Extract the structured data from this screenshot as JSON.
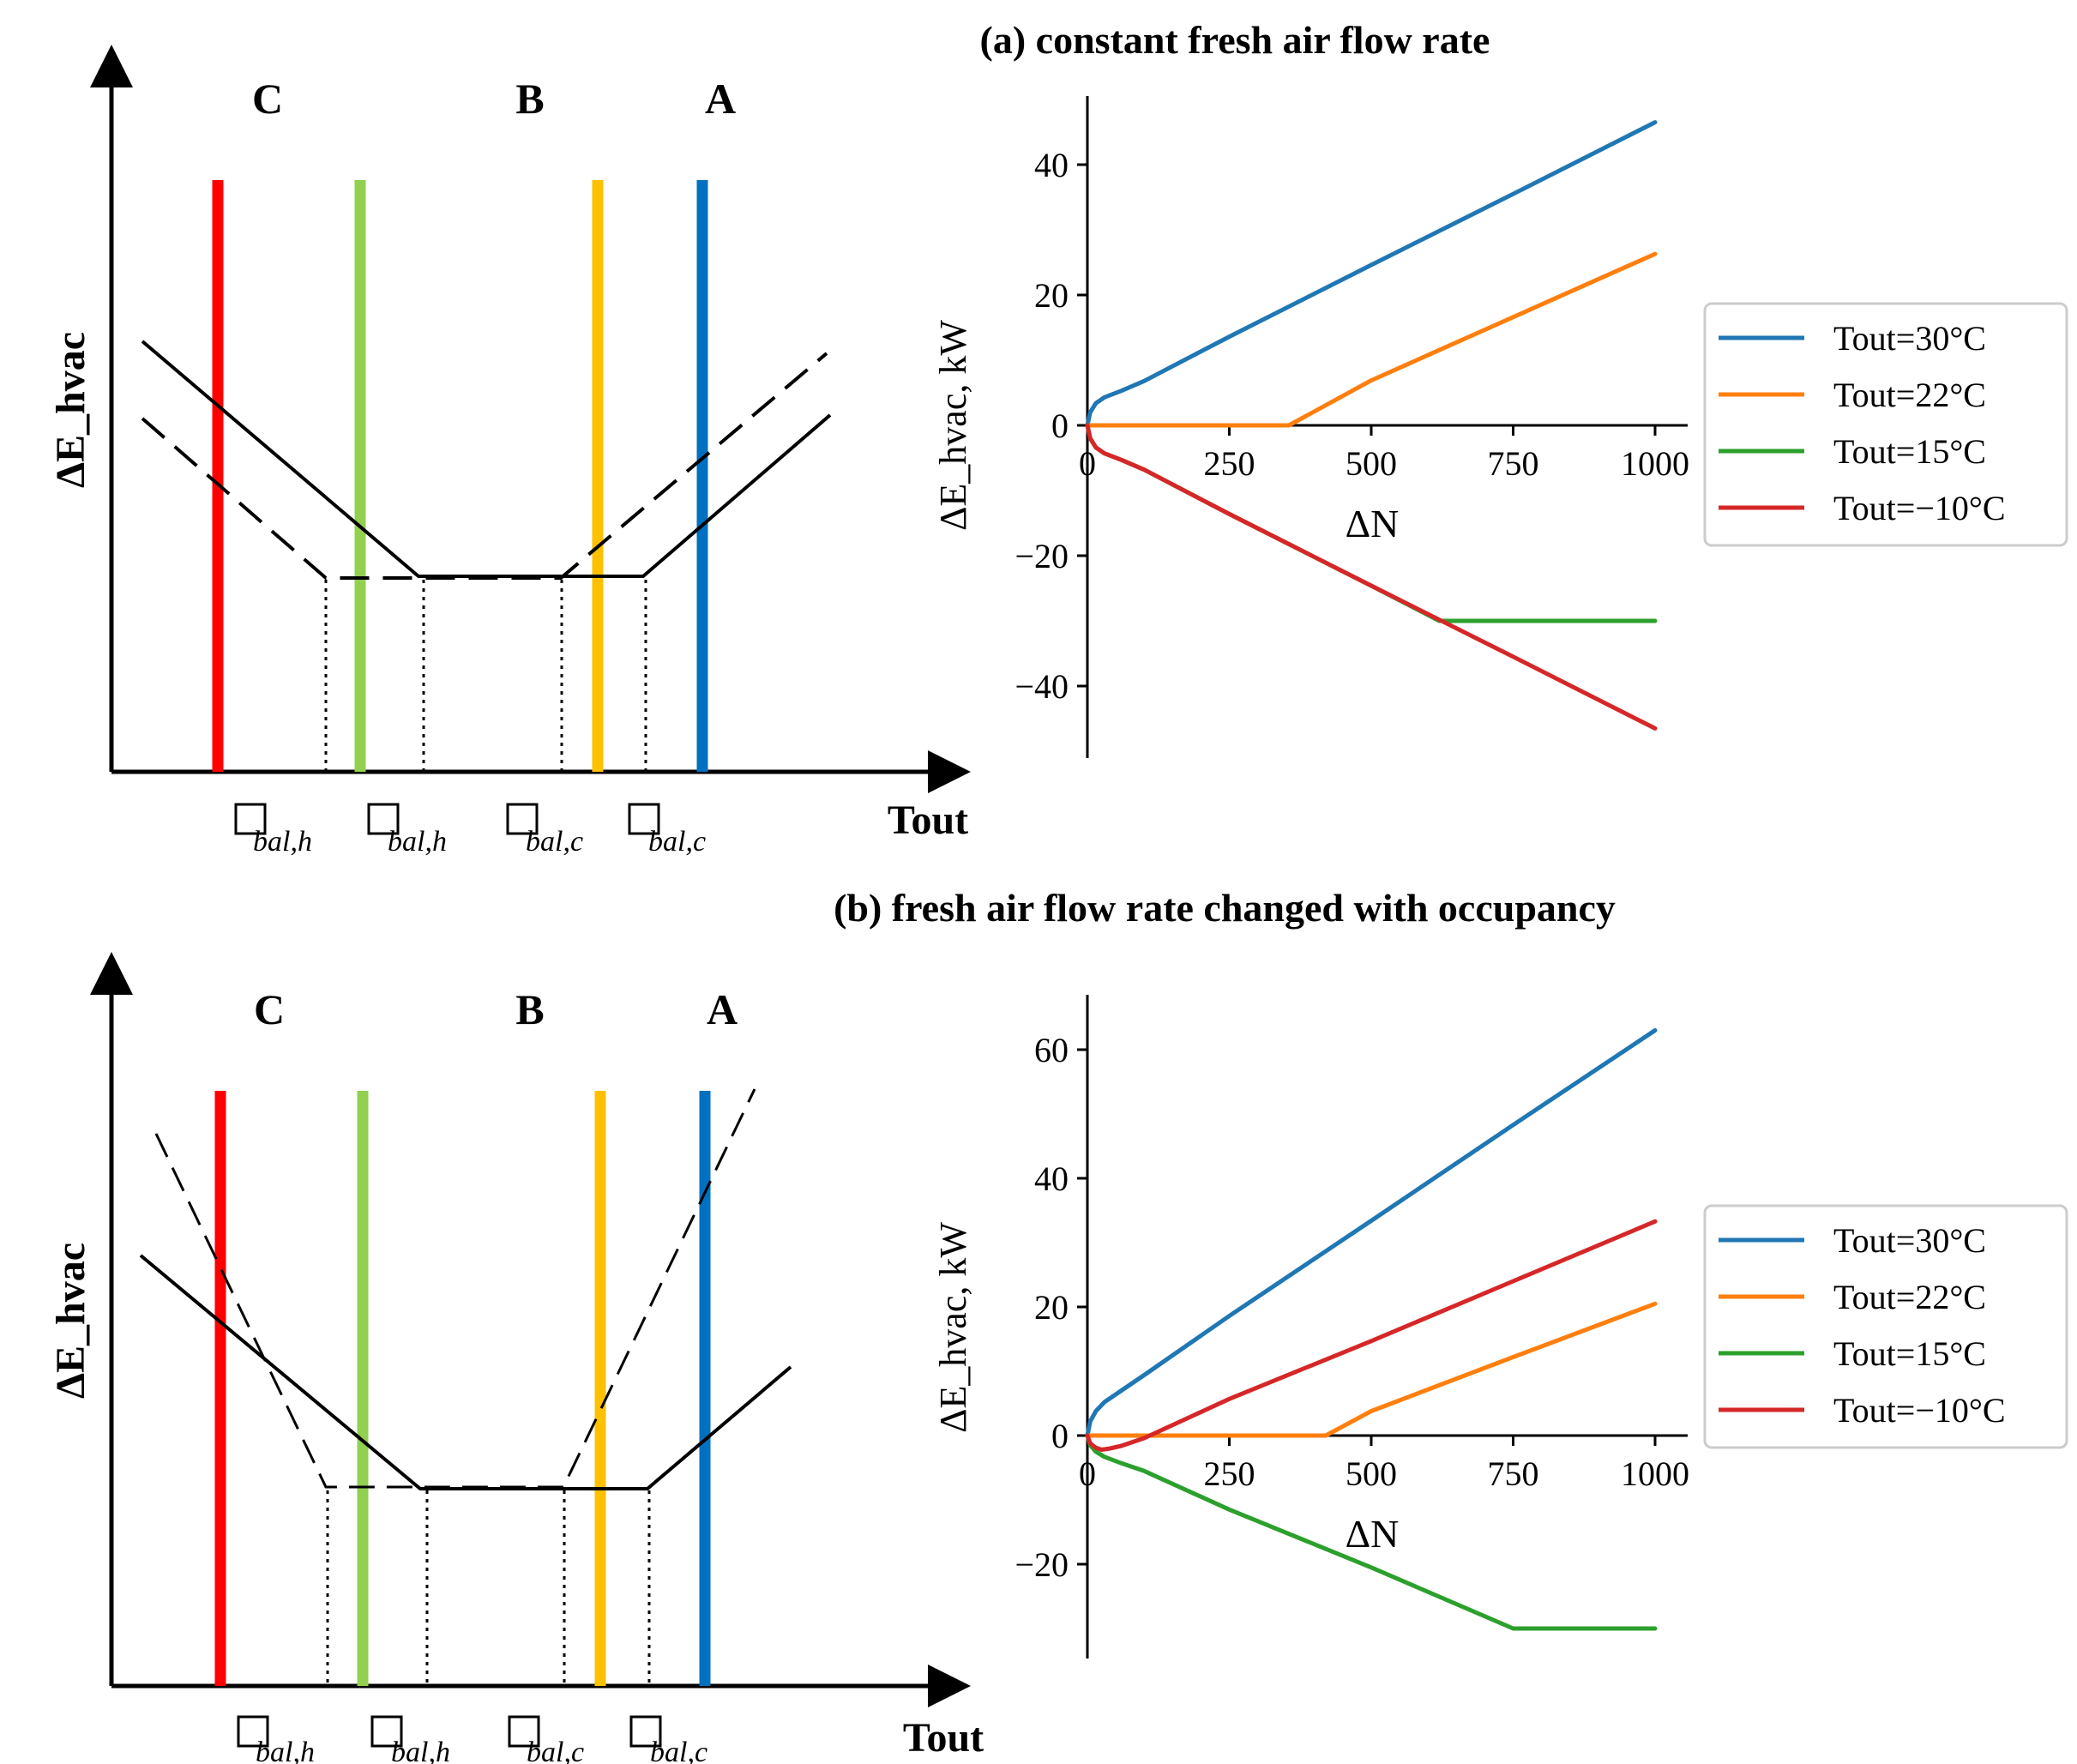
{
  "colors": {
    "blue": "#1f77b4",
    "orange": "#ff7f0e",
    "green": "#2ca02c",
    "red": "#d62728",
    "zone_red": "#ff0000",
    "zone_green": "#92d050",
    "zone_yellow": "#ffc000",
    "zone_blue": "#0070c0"
  },
  "schematics": [
    {
      "id": "a",
      "ylabel": "ΔE_hvac",
      "xlabel": "Tout",
      "regions": [
        "C",
        "B",
        "A"
      ],
      "tick_labels": [
        "□bal,h",
        "□bal,h",
        "□bal,c",
        "□bal,c"
      ],
      "tick_subs": [
        "bal,h",
        "bal,h",
        "bal,c",
        "bal,c"
      ]
    },
    {
      "id": "b",
      "ylabel": "ΔE_hvac",
      "xlabel": "Tout",
      "regions": [
        "C",
        "B",
        "A"
      ],
      "tick_labels": [
        "□bal,h",
        "□bal,h",
        "□bal,c",
        "□bal,c"
      ],
      "tick_subs": [
        "bal,h",
        "bal,h",
        "bal,c",
        "bal,c"
      ]
    }
  ],
  "chart_data": [
    {
      "type": "line",
      "title": "(a) constant fresh air flow rate",
      "xlabel": "ΔN",
      "ylabel": "ΔE_hvac, kW",
      "xlim": [
        0,
        1000
      ],
      "ylim": [
        -50,
        50
      ],
      "xticks": [
        0,
        250,
        500,
        750,
        1000
      ],
      "yticks": [
        -40,
        -20,
        0,
        20,
        40
      ],
      "legend_position": "right",
      "series": [
        {
          "name": "Tout=30°C",
          "color": "#1f77b4",
          "points": [
            [
              0,
              0
            ],
            [
              5,
              2
            ],
            [
              15,
              3.4
            ],
            [
              30,
              4.3
            ],
            [
              60,
              5.3
            ],
            [
              100,
              6.8
            ],
            [
              250,
              13.6
            ],
            [
              500,
              24.6
            ],
            [
              750,
              35.5
            ],
            [
              1000,
              46.5
            ]
          ]
        },
        {
          "name": "Tout=22°C",
          "color": "#ff7f0e",
          "points": [
            [
              0,
              0
            ],
            [
              355,
              0
            ],
            [
              500,
              6.9
            ],
            [
              750,
              16.6
            ],
            [
              1000,
              26.3
            ]
          ]
        },
        {
          "name": "Tout=15°C",
          "color": "#2ca02c",
          "points": [
            [
              0,
              0
            ],
            [
              5,
              -2
            ],
            [
              15,
              -3.4
            ],
            [
              30,
              -4.3
            ],
            [
              60,
              -5.3
            ],
            [
              100,
              -6.8
            ],
            [
              250,
              -13.6
            ],
            [
              500,
              -24.6
            ],
            [
              620,
              -30
            ],
            [
              1000,
              -30
            ]
          ]
        },
        {
          "name": "Tout=−10°C",
          "color": "#d62728",
          "points": [
            [
              0,
              0
            ],
            [
              5,
              -2
            ],
            [
              15,
              -3.4
            ],
            [
              30,
              -4.3
            ],
            [
              60,
              -5.3
            ],
            [
              100,
              -6.8
            ],
            [
              250,
              -13.6
            ],
            [
              500,
              -24.6
            ],
            [
              750,
              -35.5
            ],
            [
              1000,
              -46.5
            ]
          ]
        }
      ]
    },
    {
      "type": "line",
      "title": "(b) fresh air flow rate changed with occupancy",
      "xlabel": "ΔN",
      "ylabel": "ΔE_hvac, kW",
      "xlim": [
        0,
        1000
      ],
      "ylim": [
        -35,
        68
      ],
      "xticks": [
        0,
        250,
        500,
        750,
        1000
      ],
      "yticks": [
        -20,
        0,
        20,
        40,
        60
      ],
      "legend_position": "right",
      "series": [
        {
          "name": "Tout=30°C",
          "color": "#1f77b4",
          "points": [
            [
              0,
              0
            ],
            [
              5,
              2.2
            ],
            [
              15,
              3.8
            ],
            [
              30,
              5.2
            ],
            [
              60,
              7.0
            ],
            [
              100,
              9.4
            ],
            [
              250,
              18.6
            ],
            [
              500,
              33.4
            ],
            [
              750,
              48.3
            ],
            [
              1000,
              63
            ]
          ]
        },
        {
          "name": "Tout=22°C",
          "color": "#ff7f0e",
          "points": [
            [
              0,
              0
            ],
            [
              420,
              0
            ],
            [
              500,
              3.8
            ],
            [
              750,
              12.2
            ],
            [
              1000,
              20.5
            ]
          ]
        },
        {
          "name": "Tout=15°C",
          "color": "#2ca02c",
          "points": [
            [
              0,
              0
            ],
            [
              5,
              -1.5
            ],
            [
              15,
              -2.5
            ],
            [
              30,
              -3.3
            ],
            [
              60,
              -4.3
            ],
            [
              100,
              -5.5
            ],
            [
              250,
              -11.5
            ],
            [
              500,
              -20.5
            ],
            [
              750,
              -30
            ],
            [
              1000,
              -30
            ]
          ]
        },
        {
          "name": "Tout=−10°C",
          "color": "#d62728",
          "points": [
            [
              0,
              0
            ],
            [
              5,
              -1.2
            ],
            [
              15,
              -1.9
            ],
            [
              25,
              -2.2
            ],
            [
              40,
              -2.0
            ],
            [
              60,
              -1.6
            ],
            [
              100,
              -0.4
            ],
            [
              250,
              5.7
            ],
            [
              500,
              14.7
            ],
            [
              750,
              24
            ],
            [
              1000,
              33.3
            ]
          ]
        }
      ]
    }
  ]
}
